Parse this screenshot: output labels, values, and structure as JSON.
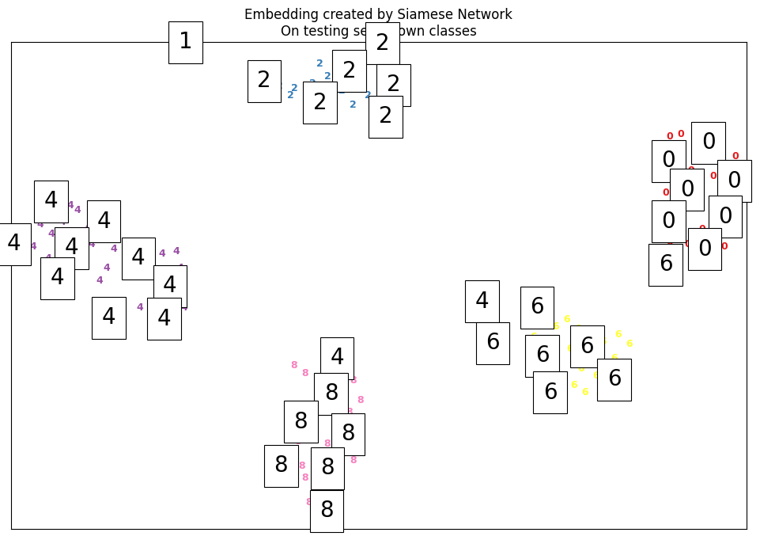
{
  "chart_data": {
    "type": "scatter",
    "title": "Embedding created by Siamese Network\nOn testing set, known classes",
    "xlim": [
      0,
      100
    ],
    "ylim": [
      0,
      100
    ],
    "xticks": [],
    "yticks": [],
    "tick_labels": false,
    "marker": "text",
    "series": [
      {
        "name": "0",
        "color": "#e41a1c",
        "values": [
          [
            89.5,
            80.5
          ],
          [
            91.0,
            81.0
          ],
          [
            93.0,
            79.5
          ],
          [
            96.5,
            80.0
          ],
          [
            98.5,
            76.5
          ],
          [
            88.5,
            74.5
          ],
          [
            90.5,
            72.0
          ],
          [
            92.5,
            73.5
          ],
          [
            95.5,
            72.5
          ],
          [
            97.5,
            74.0
          ],
          [
            89.0,
            69.0
          ],
          [
            93.5,
            67.0
          ],
          [
            96.0,
            66.5
          ],
          [
            98.0,
            68.5
          ],
          [
            88.5,
            65.5
          ],
          [
            91.0,
            62.5
          ],
          [
            94.0,
            61.5
          ],
          [
            97.5,
            62.0
          ],
          [
            99.0,
            60.5
          ],
          [
            92.0,
            58.5
          ],
          [
            95.5,
            57.0
          ],
          [
            97.0,
            58.0
          ],
          [
            89.5,
            59.0
          ],
          [
            94.5,
            55.5
          ],
          [
            90.5,
            76.5
          ],
          [
            96.5,
            70.0
          ]
        ]
      },
      {
        "name": "2",
        "color": "#377eb8",
        "values": [
          [
            36.5,
            91.0
          ],
          [
            38.5,
            90.5
          ],
          [
            41.0,
            91.5
          ],
          [
            43.0,
            93.0
          ],
          [
            44.5,
            96.5
          ],
          [
            40.5,
            88.5
          ],
          [
            45.0,
            90.0
          ],
          [
            47.5,
            92.5
          ],
          [
            48.5,
            89.0
          ],
          [
            46.5,
            87.0
          ],
          [
            49.5,
            86.0
          ],
          [
            42.0,
            95.5
          ],
          [
            47.0,
            95.0
          ],
          [
            44.0,
            88.0
          ],
          [
            38.0,
            89.0
          ],
          [
            50.0,
            90.0
          ]
        ]
      },
      {
        "name": "4",
        "color": "#984ea3",
        "values": [
          [
            4.0,
            62.5
          ],
          [
            5.5,
            60.5
          ],
          [
            7.0,
            63.0
          ],
          [
            9.0,
            65.5
          ],
          [
            10.5,
            62.0
          ],
          [
            3.0,
            58.0
          ],
          [
            5.0,
            55.5
          ],
          [
            6.5,
            57.5
          ],
          [
            8.5,
            59.5
          ],
          [
            11.0,
            58.5
          ],
          [
            12.5,
            60.0
          ],
          [
            14.0,
            57.5
          ],
          [
            15.5,
            59.0
          ],
          [
            17.0,
            58.5
          ],
          [
            19.0,
            56.0
          ],
          [
            20.5,
            56.5
          ],
          [
            22.5,
            57.0
          ],
          [
            23.0,
            53.5
          ],
          [
            18.5,
            53.0
          ],
          [
            16.0,
            54.0
          ],
          [
            13.0,
            53.5
          ],
          [
            10.0,
            54.5
          ],
          [
            4.5,
            53.0
          ],
          [
            12.0,
            51.0
          ],
          [
            21.5,
            47.5
          ],
          [
            17.5,
            45.5
          ],
          [
            23.5,
            45.5
          ],
          [
            8.0,
            66.5
          ],
          [
            13.5,
            66.0
          ],
          [
            6.0,
            68.5
          ]
        ]
      },
      {
        "name": "6",
        "color": "#ffff33",
        "values": [
          [
            70.5,
            43.0
          ],
          [
            72.5,
            42.5
          ],
          [
            74.0,
            41.5
          ],
          [
            75.5,
            43.0
          ],
          [
            77.0,
            41.0
          ],
          [
            79.0,
            39.5
          ],
          [
            80.5,
            38.5
          ],
          [
            82.5,
            40.0
          ],
          [
            84.0,
            38.0
          ],
          [
            71.0,
            39.5
          ],
          [
            73.0,
            38.5
          ],
          [
            76.0,
            37.0
          ],
          [
            78.5,
            35.5
          ],
          [
            80.0,
            34.5
          ],
          [
            82.0,
            35.0
          ],
          [
            83.5,
            33.5
          ],
          [
            77.5,
            33.0
          ],
          [
            79.5,
            31.5
          ],
          [
            76.5,
            29.5
          ],
          [
            78.0,
            28.0
          ],
          [
            80.0,
            27.5
          ],
          [
            82.5,
            28.5
          ],
          [
            74.5,
            31.0
          ],
          [
            75.0,
            26.5
          ]
        ]
      },
      {
        "name": "8",
        "color": "#f781bf",
        "values": [
          [
            38.5,
            33.5
          ],
          [
            40.0,
            32.0
          ],
          [
            42.5,
            33.0
          ],
          [
            44.5,
            31.5
          ],
          [
            46.5,
            30.5
          ],
          [
            47.5,
            26.5
          ],
          [
            46.0,
            24.0
          ],
          [
            41.5,
            25.5
          ],
          [
            39.0,
            24.5
          ],
          [
            40.5,
            21.0
          ],
          [
            44.0,
            20.5
          ],
          [
            47.0,
            18.5
          ],
          [
            45.5,
            15.5
          ],
          [
            41.5,
            15.0
          ],
          [
            39.5,
            13.0
          ],
          [
            40.0,
            10.5
          ],
          [
            41.0,
            8.0
          ],
          [
            40.5,
            5.5
          ],
          [
            44.5,
            11.0
          ],
          [
            46.5,
            14.0
          ],
          [
            43.0,
            17.5
          ],
          [
            39.0,
            18.0
          ]
        ]
      }
    ],
    "thumbnails": [
      {
        "label": "1",
        "x": 23.7,
        "y": 100.0
      },
      {
        "label": "2",
        "x": 34.4,
        "y": 92.0
      },
      {
        "label": "2",
        "x": 50.5,
        "y": 99.7
      },
      {
        "label": "2",
        "x": 46.0,
        "y": 94.0
      },
      {
        "label": "2",
        "x": 52.0,
        "y": 91.2
      },
      {
        "label": "2",
        "x": 42.0,
        "y": 87.5
      },
      {
        "label": "2",
        "x": 50.9,
        "y": 84.7
      },
      {
        "label": "0",
        "x": 94.8,
        "y": 79.3
      },
      {
        "label": "0",
        "x": 89.4,
        "y": 75.6
      },
      {
        "label": "0",
        "x": 98.3,
        "y": 71.4
      },
      {
        "label": "0",
        "x": 91.9,
        "y": 69.6
      },
      {
        "label": "0",
        "x": 97.1,
        "y": 64.1
      },
      {
        "label": "0",
        "x": 89.4,
        "y": 63.1
      },
      {
        "label": "0",
        "x": 94.3,
        "y": 57.4
      },
      {
        "label": "6",
        "x": 89.0,
        "y": 54.3
      },
      {
        "label": "4",
        "x": 5.4,
        "y": 67.3
      },
      {
        "label": "4",
        "x": 12.6,
        "y": 63.1
      },
      {
        "label": "4",
        "x": 0.4,
        "y": 58.5
      },
      {
        "label": "4",
        "x": 8.2,
        "y": 57.7
      },
      {
        "label": "4",
        "x": 17.3,
        "y": 55.6
      },
      {
        "label": "4",
        "x": 6.3,
        "y": 51.5
      },
      {
        "label": "4",
        "x": 21.6,
        "y": 49.9
      },
      {
        "label": "4",
        "x": 13.3,
        "y": 43.4
      },
      {
        "label": "4",
        "x": 20.8,
        "y": 43.1
      },
      {
        "label": "4",
        "x": 64.0,
        "y": 46.7
      },
      {
        "label": "6",
        "x": 71.5,
        "y": 45.5
      },
      {
        "label": "6",
        "x": 65.5,
        "y": 38.2
      },
      {
        "label": "6",
        "x": 72.2,
        "y": 35.6
      },
      {
        "label": "6",
        "x": 78.3,
        "y": 37.4
      },
      {
        "label": "6",
        "x": 82.0,
        "y": 30.7
      },
      {
        "label": "6",
        "x": 73.3,
        "y": 28.0
      },
      {
        "label": "4",
        "x": 44.3,
        "y": 35.1
      },
      {
        "label": "8",
        "x": 43.5,
        "y": 27.8
      },
      {
        "label": "8",
        "x": 39.4,
        "y": 22.0
      },
      {
        "label": "8",
        "x": 45.8,
        "y": 19.5
      },
      {
        "label": "8",
        "x": 36.7,
        "y": 13.0
      },
      {
        "label": "8",
        "x": 43.0,
        "y": 12.5
      },
      {
        "label": "8",
        "x": 42.9,
        "y": 3.7
      }
    ]
  }
}
